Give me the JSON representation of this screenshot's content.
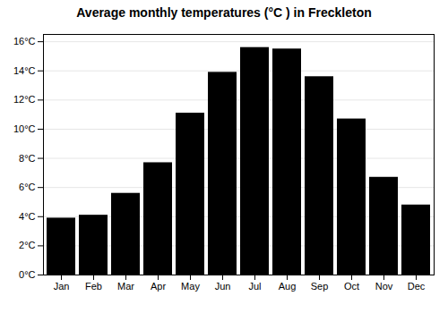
{
  "chart_data": {
    "type": "bar",
    "title": "Average monthly temperatures (°C ) in Freckleton",
    "categories": [
      "Jan",
      "Feb",
      "Mar",
      "Apr",
      "May",
      "Jun",
      "Jul",
      "Aug",
      "Sep",
      "Oct",
      "Nov",
      "Dec"
    ],
    "values": [
      3.9,
      4.1,
      5.6,
      7.7,
      11.1,
      13.9,
      15.6,
      15.5,
      13.6,
      10.7,
      6.7,
      4.8
    ],
    "ylim": [
      0,
      16.5
    ],
    "yticks": [
      {
        "value": 0,
        "label": "0°C"
      },
      {
        "value": 2,
        "label": "2°C"
      },
      {
        "value": 4,
        "label": "4°C"
      },
      {
        "value": 6,
        "label": "6°C"
      },
      {
        "value": 8,
        "label": "8°C"
      },
      {
        "value": 10,
        "label": "10°C"
      },
      {
        "value": 12,
        "label": "12°C"
      },
      {
        "value": 14,
        "label": "14°C"
      },
      {
        "value": 16,
        "label": "16°C"
      }
    ],
    "grid": true
  }
}
